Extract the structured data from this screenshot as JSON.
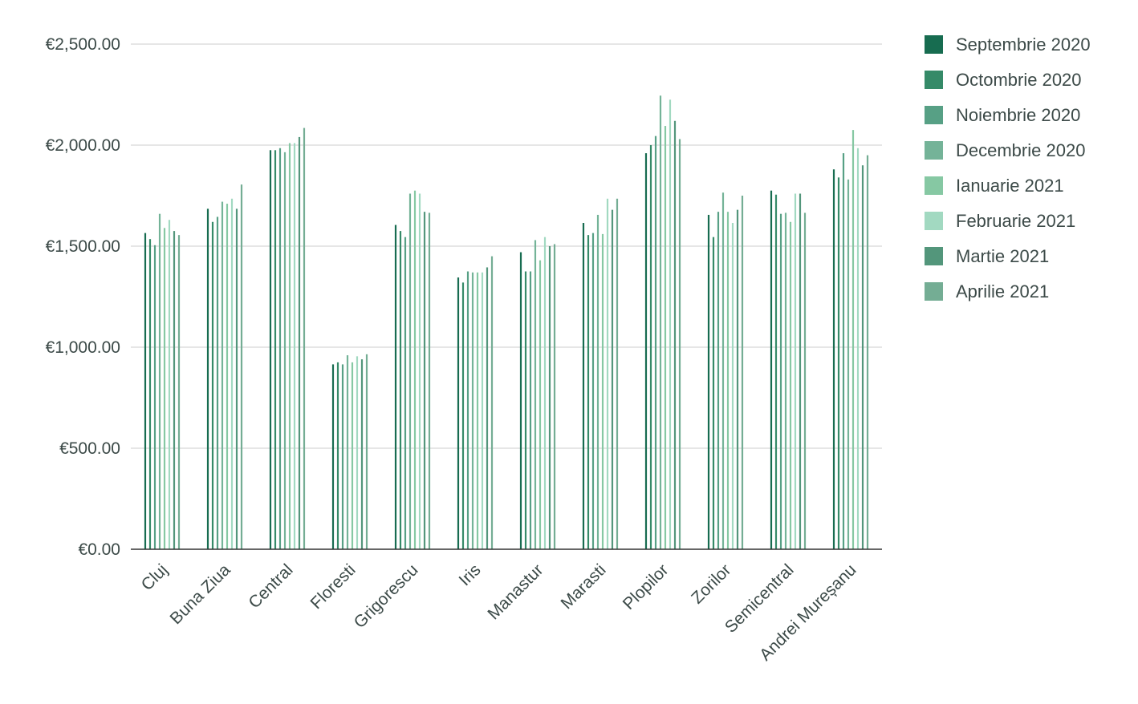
{
  "chart_data": {
    "type": "bar",
    "title": "",
    "xlabel": "",
    "ylabel": "",
    "ylim": [
      0,
      2500
    ],
    "y_ticks": [
      "€0.00",
      "€500.00",
      "€1,000.00",
      "€1,500.00",
      "€2,000.00",
      "€2,500.00"
    ],
    "y_tick_values": [
      0,
      500,
      1000,
      1500,
      2000,
      2500
    ],
    "grid": true,
    "legend_position": "right",
    "categories": [
      "Cluj",
      "Buna Ziua",
      "Central",
      "Floresti",
      "Grigorescu",
      "Iris",
      "Manastur",
      "Marasti",
      "Plopilor",
      "Zorilor",
      "Semicentral",
      "Andrei Mureșanu"
    ],
    "series": [
      {
        "name": "Septembrie 2020",
        "color": "#176c50",
        "values": [
          1565,
          1685,
          1975,
          915,
          1605,
          1345,
          1470,
          1615,
          1960,
          1655,
          1775,
          1880
        ]
      },
      {
        "name": "Octombrie 2020",
        "color": "#358a68",
        "values": [
          1535,
          1620,
          1975,
          925,
          1575,
          1320,
          1375,
          1555,
          2000,
          1545,
          1755,
          1840
        ]
      },
      {
        "name": "Noiembrie 2020",
        "color": "#57a085",
        "values": [
          1505,
          1645,
          1985,
          915,
          1545,
          1375,
          1375,
          1565,
          2045,
          1670,
          1660,
          1960
        ]
      },
      {
        "name": "Decembrie 2020",
        "color": "#74b398",
        "values": [
          1660,
          1720,
          1965,
          960,
          1760,
          1370,
          1530,
          1655,
          2245,
          1765,
          1665,
          1830
        ]
      },
      {
        "name": "Ianuarie 2021",
        "color": "#86c8a3",
        "values": [
          1590,
          1710,
          2010,
          925,
          1775,
          1370,
          1430,
          1560,
          2095,
          1670,
          1620,
          2075
        ]
      },
      {
        "name": "Februarie 2021",
        "color": "#a2d9c1",
        "values": [
          1630,
          1735,
          2010,
          955,
          1760,
          1370,
          1545,
          1735,
          2225,
          1615,
          1760,
          1985
        ]
      },
      {
        "name": "Martie 2021",
        "color": "#53967b",
        "values": [
          1575,
          1685,
          2040,
          940,
          1670,
          1395,
          1500,
          1680,
          2120,
          1680,
          1760,
          1900
        ]
      },
      {
        "name": "Aprilie 2021",
        "color": "#74ad94",
        "values": [
          1555,
          1805,
          2085,
          965,
          1665,
          1450,
          1510,
          1735,
          2030,
          1750,
          1665,
          1950
        ]
      }
    ]
  }
}
